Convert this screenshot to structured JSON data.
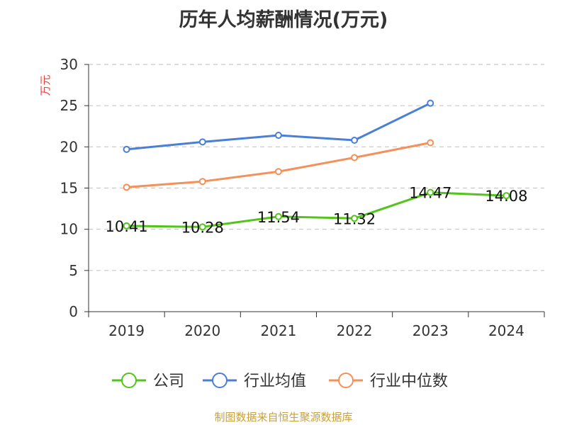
{
  "colors": {
    "公司": "#52c41a",
    "行业均值": "#4a7fd6",
    "行业中位数": "#f4905a",
    "ylabel": "#e84040",
    "source": "#c8a03c"
  },
  "source_note": "制图数据来自恒生聚源数据库",
  "chart_data": {
    "type": "line",
    "title": "历年人均薪酬情况(万元)",
    "xlabel": "",
    "ylabel": "万元",
    "categories": [
      "2019",
      "2020",
      "2021",
      "2022",
      "2023",
      "2024"
    ],
    "ylim": [
      0,
      30
    ],
    "yticks": [
      0,
      5,
      10,
      15,
      20,
      25,
      30
    ],
    "grid": true,
    "legend_position": "bottom",
    "series": [
      {
        "name": "公司",
        "values": [
          10.41,
          10.28,
          11.54,
          11.32,
          14.47,
          14.08
        ],
        "labels": [
          "10.41",
          "10.28",
          "11.54",
          "11.32",
          "14.47",
          "14.08"
        ]
      },
      {
        "name": "行业均值",
        "values": [
          19.7,
          20.6,
          21.4,
          20.8,
          25.3,
          null
        ]
      },
      {
        "name": "行业中位数",
        "values": [
          15.1,
          15.8,
          17.0,
          18.7,
          20.5,
          null
        ]
      }
    ]
  }
}
